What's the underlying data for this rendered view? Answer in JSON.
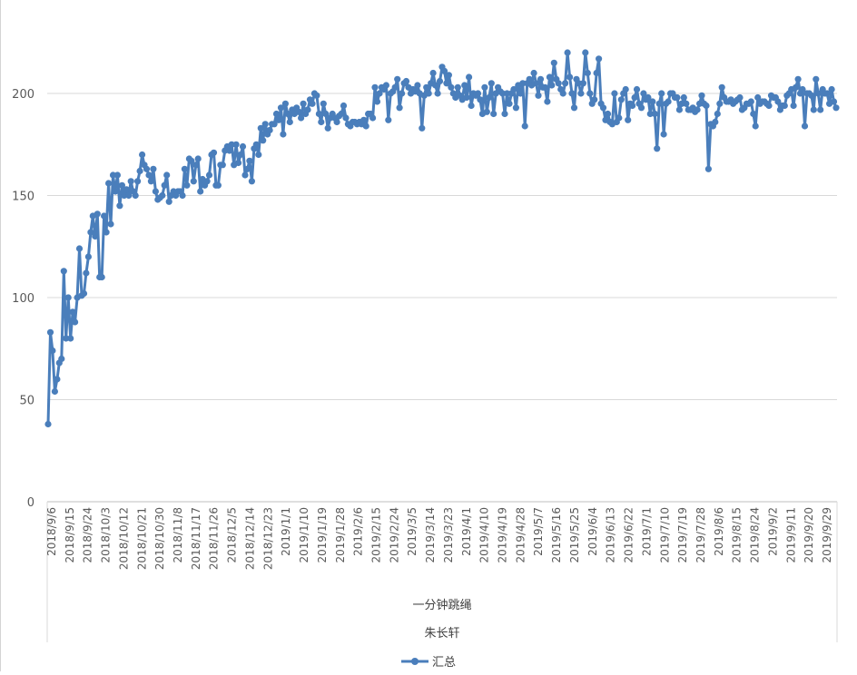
{
  "chart_data": {
    "type": "line",
    "title": "",
    "xlabel_levels": [
      "一分钟跳绳",
      "朱长轩"
    ],
    "ylabel": "",
    "ylim": [
      0,
      250
    ],
    "yticks": [
      0,
      50,
      100,
      150,
      200
    ],
    "grid": true,
    "legend": {
      "position": "bottom",
      "entries": [
        "汇总"
      ]
    },
    "color": "#4a7ebb",
    "x_tick_labels": [
      "2018/9/6",
      "2018/9/15",
      "2018/9/24",
      "2018/10/3",
      "2018/10/12",
      "2018/10/21",
      "2018/10/30",
      "2018/11/8",
      "2018/11/17",
      "2018/11/26",
      "2018/12/5",
      "2018/12/14",
      "2018/12/23",
      "2019/1/1",
      "2019/1/10",
      "2019/1/19",
      "2019/1/28",
      "2019/2/6",
      "2019/2/15",
      "2019/2/24",
      "2019/3/5",
      "2019/3/14",
      "2019/3/23",
      "2019/4/1",
      "2019/4/10",
      "2019/4/19",
      "2019/4/28",
      "2019/5/7",
      "2019/5/16",
      "2019/5/25",
      "2019/6/4",
      "2019/6/13",
      "2019/6/22",
      "2019/7/1",
      "2019/7/10",
      "2019/7/19",
      "2019/7/28",
      "2019/8/6",
      "2019/8/15",
      "2019/8/24",
      "2019/9/2",
      "2019/9/11",
      "2019/9/20",
      "2019/9/29"
    ],
    "series": [
      {
        "name": "汇总",
        "values": [
          38,
          83,
          74,
          54,
          60,
          68,
          70,
          113,
          80,
          100,
          80,
          93,
          88,
          100,
          124,
          101,
          102,
          112,
          120,
          132,
          140,
          130,
          141,
          110,
          110,
          140,
          132,
          156,
          136,
          160,
          152,
          160,
          145,
          155,
          150,
          153,
          150,
          157,
          152,
          150,
          157,
          162,
          170,
          165,
          163,
          160,
          157,
          163,
          152,
          148,
          149,
          150,
          155,
          160,
          147,
          150,
          152,
          150,
          152,
          152,
          150,
          163,
          155,
          168,
          167,
          157,
          165,
          168,
          152,
          158,
          155,
          157,
          160,
          170,
          171,
          155,
          155,
          165,
          165,
          172,
          174,
          172,
          175,
          165,
          175,
          166,
          170,
          174,
          160,
          163,
          167,
          157,
          173,
          175,
          170,
          183,
          177,
          185,
          180,
          182,
          185,
          185,
          190,
          187,
          193,
          180,
          195,
          190,
          186,
          192,
          190,
          193,
          191,
          188,
          195,
          190,
          192,
          197,
          195,
          200,
          199,
          190,
          186,
          195,
          190,
          183,
          188,
          190,
          188,
          186,
          189,
          190,
          194,
          188,
          185,
          184,
          186,
          186,
          185,
          186,
          185,
          187,
          184,
          190,
          190,
          188,
          203,
          196,
          200,
          203,
          202,
          204,
          187,
          200,
          201,
          203,
          207,
          193,
          200,
          205,
          206,
          203,
          200,
          202,
          201,
          204,
          200,
          183,
          199,
          203,
          200,
          205,
          210,
          204,
          200,
          206,
          213,
          211,
          205,
          209,
          203,
          200,
          198,
          203,
          199,
          197,
          204,
          198,
          208,
          194,
          200,
          199,
          200,
          197,
          190,
          203,
          191,
          198,
          205,
          190,
          200,
          203,
          201,
          200,
          190,
          200,
          195,
          200,
          202,
          193,
          204,
          200,
          205,
          184,
          205,
          207,
          204,
          210,
          205,
          199,
          207,
          203,
          203,
          196,
          208,
          204,
          215,
          207,
          205,
          202,
          200,
          205,
          220,
          208,
          200,
          193,
          207,
          205,
          200,
          205,
          220,
          210,
          200,
          195,
          197,
          210,
          217,
          195,
          193,
          187,
          190,
          186,
          185,
          200,
          186,
          188,
          197,
          200,
          202,
          187,
          195,
          194,
          198,
          202,
          195,
          193,
          200,
          197,
          198,
          190,
          196,
          190,
          173,
          195,
          200,
          180,
          195,
          196,
          200,
          200,
          198,
          198,
          192,
          195,
          198,
          195,
          192,
          192,
          193,
          191,
          192,
          195,
          199,
          195,
          194,
          163,
          185,
          184,
          186,
          190,
          195,
          203,
          198,
          196,
          196,
          197,
          195,
          196,
          197,
          198,
          192,
          193,
          195,
          195,
          196,
          190,
          184,
          198,
          195,
          196,
          196,
          195,
          194,
          199,
          198,
          198,
          196,
          192,
          194,
          194,
          199,
          200,
          202,
          194,
          203,
          207,
          200,
          202,
          184,
          200,
          200,
          199,
          192,
          207,
          200,
          192,
          202,
          200,
          200,
          195,
          202,
          196,
          193
        ]
      }
    ]
  }
}
